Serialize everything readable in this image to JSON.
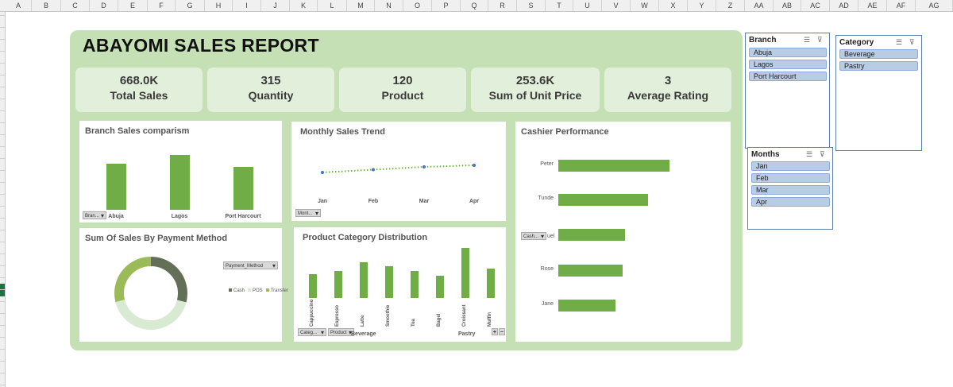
{
  "sheet": {
    "columns": [
      "A",
      "B",
      "C",
      "D",
      "E",
      "F",
      "G",
      "H",
      "I",
      "J",
      "K",
      "L",
      "M",
      "N",
      "O",
      "P",
      "Q",
      "R",
      "S",
      "T",
      "U",
      "V",
      "W",
      "X",
      "Y",
      "Z",
      "AA",
      "AB",
      "AC",
      "AD",
      "AE",
      "AF",
      "AG"
    ]
  },
  "dashboard": {
    "title": "ABAYOMI SALES REPORT",
    "kpis": [
      {
        "value": "668.0K",
        "label": "Total Sales"
      },
      {
        "value": "315",
        "label": "Quantity"
      },
      {
        "value": "120",
        "label": "Product"
      },
      {
        "value": "253.6K",
        "label": "Sum of Unit Price"
      },
      {
        "value": "3",
        "label": "Average Rating"
      }
    ],
    "colors": {
      "bar": "#70ad47",
      "panel_bg": "#c5e0b4",
      "kpi_bg": "#e2efda"
    }
  },
  "charts": {
    "branch": {
      "title": "Branch Sales comparism",
      "filter": "Bran..."
    },
    "monthly": {
      "title": "Monthly Sales Trend",
      "filter": "Mont..."
    },
    "cashier": {
      "title": "Cashier Performance",
      "filter": "Cash...",
      "hidden_suffix": "uel"
    },
    "payment": {
      "title": "Sum Of Sales By Payment Method",
      "filter": "Payment_Method"
    },
    "category": {
      "title": "Product Category Distribution",
      "filters": [
        "Categ...",
        "Product"
      ],
      "groups": [
        "Beverage",
        "Pastry"
      ],
      "expand": "+",
      "collapse": "−"
    }
  },
  "chart_data": [
    {
      "type": "bar",
      "title": "Branch Sales comparism",
      "categories": [
        "Abuja",
        "Lagos",
        "Port Harcourt"
      ],
      "values": [
        215,
        255,
        200
      ]
    },
    {
      "type": "line",
      "title": "Monthly Sales Trend",
      "categories": [
        "Jan",
        "Feb",
        "Mar",
        "Apr"
      ],
      "values": [
        158,
        165,
        172,
        176
      ]
    },
    {
      "type": "bar",
      "title": "Cashier Performance",
      "orientation": "horizontal",
      "categories": [
        "Peter",
        "Tunde",
        "",
        "Rose",
        "Jane"
      ],
      "values": [
        155,
        125,
        93,
        90,
        80
      ]
    },
    {
      "type": "pie",
      "title": "Sum Of Sales By Payment Method",
      "categories": [
        "Cash",
        "POS",
        "Transfer"
      ],
      "values": [
        29,
        42,
        29
      ],
      "colors": [
        "#646f58",
        "#d9ead3",
        "#9bbb59"
      ],
      "legend": "right"
    },
    {
      "type": "bar",
      "title": "Product Category Distribution",
      "categories": [
        "Cappuccino",
        "Espresso",
        "Latte",
        "Smoothie",
        "Tea",
        "Bagel",
        "Croissant",
        "Muffin"
      ],
      "groups": [
        {
          "name": "Beverage",
          "items": 5
        },
        {
          "name": "Pastry",
          "items": 3
        }
      ],
      "values": [
        61,
        69,
        90,
        80,
        68,
        56,
        127,
        74
      ]
    }
  ],
  "slicers": {
    "branch": {
      "title": "Branch",
      "items": [
        "Abuja",
        "Lagos",
        "Port Harcourt"
      ]
    },
    "category": {
      "title": "Category",
      "items": [
        "Beverage",
        "Pastry"
      ]
    },
    "months": {
      "title": "Months",
      "items": [
        "Jan",
        "Feb",
        "Mar",
        "Apr"
      ]
    },
    "icons": [
      "multi-select-icon",
      "clear-filter-icon"
    ]
  }
}
